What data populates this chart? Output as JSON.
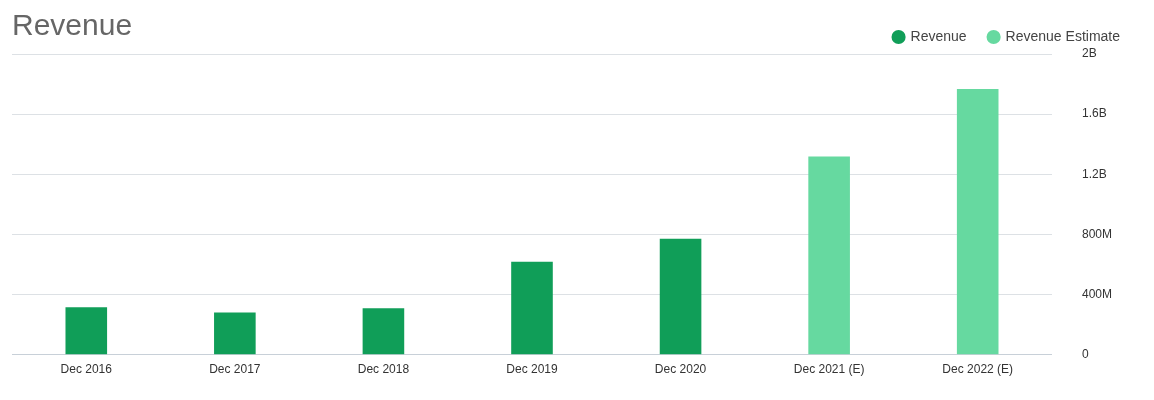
{
  "chart_data": {
    "type": "bar",
    "title": "Revenue",
    "categories": [
      "Dec 2016",
      "Dec 2017",
      "Dec 2018",
      "Dec 2019",
      "Dec 2020",
      "Dec 2021 (E)",
      "Dec 2022 (E)"
    ],
    "series": [
      {
        "name": "Revenue",
        "color": "#109e58",
        "values": [
          316000000,
          281000000,
          309000000,
          618000000,
          772000000,
          null,
          null
        ]
      },
      {
        "name": "Revenue Estimate",
        "color": "#66d9a0",
        "values": [
          null,
          null,
          null,
          null,
          null,
          1319000000,
          1768000000
        ]
      }
    ],
    "ylim": [
      0,
      2000000000
    ],
    "yticks": [
      {
        "value": 0,
        "label": "0"
      },
      {
        "value": 400000000,
        "label": "400M"
      },
      {
        "value": 800000000,
        "label": "800M"
      },
      {
        "value": 1200000000,
        "label": "1.2B"
      },
      {
        "value": 1600000000,
        "label": "1.6B"
      },
      {
        "value": 2000000000,
        "label": "2B"
      }
    ],
    "grid": "y",
    "legend": "top right"
  }
}
